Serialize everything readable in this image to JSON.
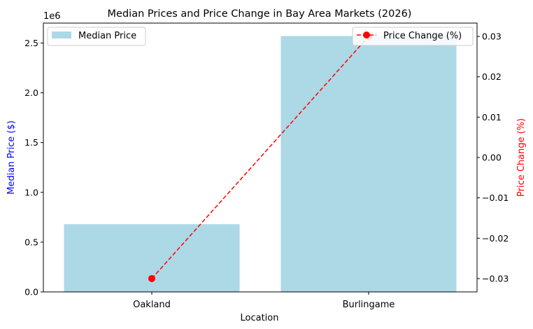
{
  "chart_data": {
    "type": "bar",
    "title": "Median Prices and Price Change in Bay Area Markets (2026)",
    "categories": [
      "Oakland",
      "Burlingame"
    ],
    "xlabel": "Location",
    "series": [
      {
        "name": "Median Price",
        "kind": "bar",
        "axis": "left",
        "values": [
          680000,
          2570000
        ],
        "color": "#add8e6"
      },
      {
        "name": "Price Change (%)",
        "kind": "line",
        "axis": "right",
        "values": [
          -0.03,
          0.03
        ],
        "color": "#ff0000",
        "linestyle": "dashed",
        "marker": "circle"
      }
    ],
    "left_axis": {
      "label": "Median Price ($)",
      "label_color": "#0000ff",
      "ylim": [
        0,
        2700000
      ],
      "ticks": [
        0,
        500000,
        1000000,
        1500000,
        2000000,
        2500000
      ],
      "tick_labels": [
        "0.0",
        "0.5",
        "1.0",
        "1.5",
        "2.0",
        "2.5"
      ],
      "offset_text": "1e6"
    },
    "right_axis": {
      "label": "Price Change (%)",
      "label_color": "#ff0000",
      "ylim": [
        -0.0333,
        0.0333
      ],
      "ticks": [
        -0.03,
        -0.02,
        -0.01,
        0.0,
        0.01,
        0.02,
        0.03
      ],
      "tick_labels": [
        "−0.03",
        "−0.02",
        "−0.01",
        "0.00",
        "0.01",
        "0.02",
        "0.03"
      ]
    },
    "legends": [
      {
        "placement": "top-left",
        "entry": "Median Price"
      },
      {
        "placement": "top-right",
        "entry": "Price Change (%)"
      }
    ],
    "grid": false
  }
}
